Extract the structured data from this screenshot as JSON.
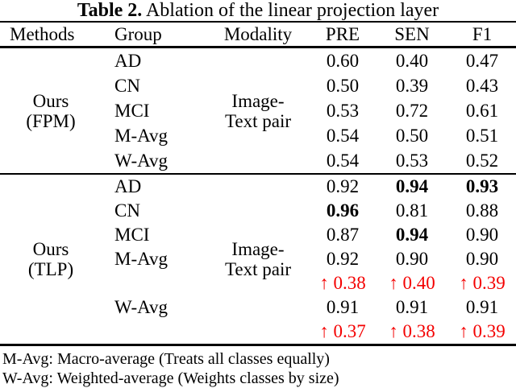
{
  "caption": {
    "label": "Table 2.",
    "text": " Ablation of the linear projection layer"
  },
  "columns": [
    "Methods",
    "Group",
    "Modality",
    "PRE",
    "SEN",
    "F1"
  ],
  "blocks": [
    {
      "method": [
        "Ours",
        "(FPM)"
      ],
      "modality": [
        "Image-",
        "Text pair"
      ],
      "rows": [
        {
          "group": "AD",
          "cells": [
            {
              "t": "0.60"
            },
            {
              "t": "0.40"
            },
            {
              "t": "0.47"
            }
          ]
        },
        {
          "group": "CN",
          "cells": [
            {
              "t": "0.50"
            },
            {
              "t": "0.39"
            },
            {
              "t": "0.43"
            }
          ]
        },
        {
          "group": "MCI",
          "cells": [
            {
              "t": "0.53"
            },
            {
              "t": "0.72"
            },
            {
              "t": "0.61"
            }
          ]
        },
        {
          "group": "M-Avg",
          "cells": [
            {
              "t": "0.54"
            },
            {
              "t": "0.50"
            },
            {
              "t": "0.51"
            }
          ]
        },
        {
          "group": "W-Avg",
          "cells": [
            {
              "t": "0.54"
            },
            {
              "t": "0.53"
            },
            {
              "t": "0.52"
            }
          ]
        }
      ]
    },
    {
      "method": [
        "Ours",
        "(TLP)"
      ],
      "modality": [
        "Image-",
        "Text pair"
      ],
      "rows": [
        {
          "group": "AD",
          "cells": [
            {
              "t": "0.92"
            },
            {
              "t": "0.94",
              "b": true
            },
            {
              "t": "0.93",
              "b": true
            }
          ]
        },
        {
          "group": "CN",
          "cells": [
            {
              "t": "0.96",
              "b": true
            },
            {
              "t": "0.81"
            },
            {
              "t": "0.88"
            }
          ]
        },
        {
          "group": "MCI",
          "cells": [
            {
              "t": "0.87"
            },
            {
              "t": "0.94",
              "b": true
            },
            {
              "t": "0.90"
            }
          ]
        },
        {
          "group": "M-Avg",
          "cells": [
            {
              "t": "0.92"
            },
            {
              "t": "0.90"
            },
            {
              "t": "0.90"
            }
          ]
        },
        {
          "group": "",
          "red": true,
          "cells": [
            {
              "t": "↑ 0.38"
            },
            {
              "t": "↑ 0.40"
            },
            {
              "t": "↑ 0.39"
            }
          ]
        },
        {
          "group": "W-Avg",
          "cells": [
            {
              "t": "0.91"
            },
            {
              "t": "0.91"
            },
            {
              "t": "0.91"
            }
          ]
        },
        {
          "group": "",
          "red": true,
          "cells": [
            {
              "t": "↑ 0.37"
            },
            {
              "t": "↑ 0.38"
            },
            {
              "t": "↑ 0.39"
            }
          ]
        }
      ]
    }
  ],
  "footnotes": [
    "M-Avg: Macro-average (Treats all classes equally)",
    "W-Avg: Weighted-average (Weights classes by size)"
  ],
  "glyphs": {
    "increase-arrow": "↑"
  },
  "colors": {
    "highlight_red": "#f40000",
    "text": "#000000",
    "background": "#ffffff"
  }
}
